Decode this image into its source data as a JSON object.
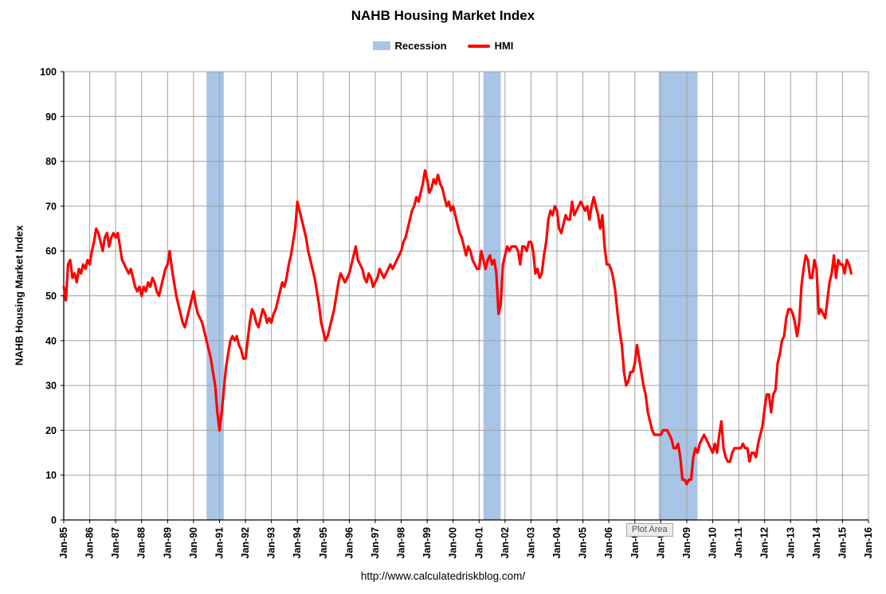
{
  "chart_data": {
    "type": "line",
    "title": "NAHB Housing Market Index",
    "ylabel": "NAHB Housing Market Index",
    "xlabel": "",
    "footer": "http://www.calculatedriskblog.com/",
    "plot_area_tooltip": "Plot Area",
    "ylim": [
      0,
      100
    ],
    "ytick_step": 10,
    "x_total_months": 372,
    "months_per_tick": 12,
    "x_tick_labels": [
      "Jan-85",
      "Jan-86",
      "Jan-87",
      "Jan-88",
      "Jan-89",
      "Jan-90",
      "Jan-91",
      "Jan-92",
      "Jan-93",
      "Jan-94",
      "Jan-95",
      "Jan-96",
      "Jan-97",
      "Jan-98",
      "Jan-99",
      "Jan-00",
      "Jan-01",
      "Jan-02",
      "Jan-03",
      "Jan-04",
      "Jan-05",
      "Jan-06",
      "Jan-07",
      "Jan-08",
      "Jan-09",
      "Jan-10",
      "Jan-11",
      "Jan-12",
      "Jan-13",
      "Jan-14",
      "Jan-15",
      "Jan-16"
    ],
    "legend": [
      {
        "label": "Recession",
        "type": "band"
      },
      {
        "label": "HMI",
        "type": "line"
      }
    ],
    "colors": {
      "line": "#FF0000",
      "recession": "#A8C4E6",
      "grid": "#A0A0A0"
    },
    "grid": true,
    "legend_position": "top-center",
    "recessions": [
      {
        "start": 66,
        "end": 74
      },
      {
        "start": 194,
        "end": 202
      },
      {
        "start": 275,
        "end": 293
      }
    ],
    "series": [
      {
        "name": "HMI",
        "start_month": 0,
        "start_label": "Jan-85",
        "values": [
          52,
          49,
          57,
          58,
          54,
          55,
          53,
          56,
          55,
          57,
          56,
          58,
          57,
          60,
          62,
          65,
          64,
          62,
          60,
          63,
          64,
          61,
          63,
          64,
          63,
          64,
          61,
          58,
          57,
          56,
          55,
          56,
          54,
          52,
          51,
          52,
          50,
          52,
          51,
          53,
          52,
          54,
          53,
          51,
          50,
          52,
          54,
          56,
          57,
          60,
          56,
          53,
          50,
          48,
          46,
          44,
          43,
          45,
          47,
          49,
          51,
          48,
          46,
          45,
          44,
          42,
          40,
          38,
          36,
          33,
          30,
          24,
          20,
          24,
          29,
          34,
          37,
          40,
          41,
          40,
          41,
          39,
          38,
          36,
          36,
          40,
          44,
          47,
          46,
          44,
          43,
          45,
          47,
          46,
          44,
          45,
          44,
          46,
          47,
          49,
          51,
          53,
          52,
          54,
          57,
          59,
          62,
          65,
          71,
          69,
          67,
          65,
          63,
          60,
          58,
          56,
          54,
          51,
          48,
          44,
          42,
          40,
          41,
          43,
          45,
          47,
          50,
          53,
          55,
          54,
          53,
          54,
          55,
          57,
          59,
          61,
          58,
          57,
          56,
          54,
          53,
          55,
          54,
          52,
          53,
          54,
          56,
          55,
          54,
          55,
          56,
          57,
          56,
          57,
          58,
          59,
          60,
          62,
          63,
          65,
          67,
          69,
          70,
          72,
          71,
          73,
          75,
          78,
          76,
          73,
          74,
          76,
          75,
          77,
          75,
          74,
          72,
          70,
          71,
          69,
          70,
          68,
          66,
          64,
          63,
          61,
          59,
          61,
          60,
          58,
          57,
          56,
          56,
          60,
          58,
          56,
          58,
          59,
          57,
          58,
          55,
          46,
          48,
          57,
          59,
          61,
          60,
          61,
          61,
          61,
          60,
          57,
          61,
          61,
          60,
          62,
          62,
          60,
          55,
          56,
          54,
          55,
          59,
          62,
          67,
          69,
          68,
          70,
          69,
          65,
          64,
          66,
          68,
          67,
          67,
          71,
          68,
          69,
          70,
          71,
          70,
          69,
          70,
          67,
          70,
          72,
          70,
          68,
          65,
          68,
          61,
          57,
          57,
          56,
          54,
          51,
          46,
          42,
          39,
          33,
          30,
          31,
          33,
          33,
          35,
          39,
          36,
          33,
          30,
          28,
          24,
          22,
          20,
          19,
          19,
          19,
          19,
          20,
          20,
          20,
          19,
          18,
          16,
          16,
          17,
          14,
          9,
          9,
          8,
          9,
          9,
          14,
          16,
          15,
          17,
          18,
          19,
          18,
          17,
          16,
          15,
          17,
          15,
          19,
          22,
          16,
          14,
          13,
          13,
          15,
          16,
          16,
          16,
          16,
          17,
          16,
          16,
          13,
          15,
          15,
          14,
          17,
          19,
          21,
          25,
          28,
          28,
          24,
          28,
          29,
          35,
          37,
          40,
          41,
          45,
          47,
          47,
          46,
          44,
          41,
          44,
          52,
          56,
          59,
          58,
          54,
          54,
          58,
          56,
          46,
          47,
          46,
          45,
          49,
          53,
          55,
          59,
          54,
          58,
          57,
          57,
          55,
          58,
          57,
          55
        ]
      }
    ]
  }
}
